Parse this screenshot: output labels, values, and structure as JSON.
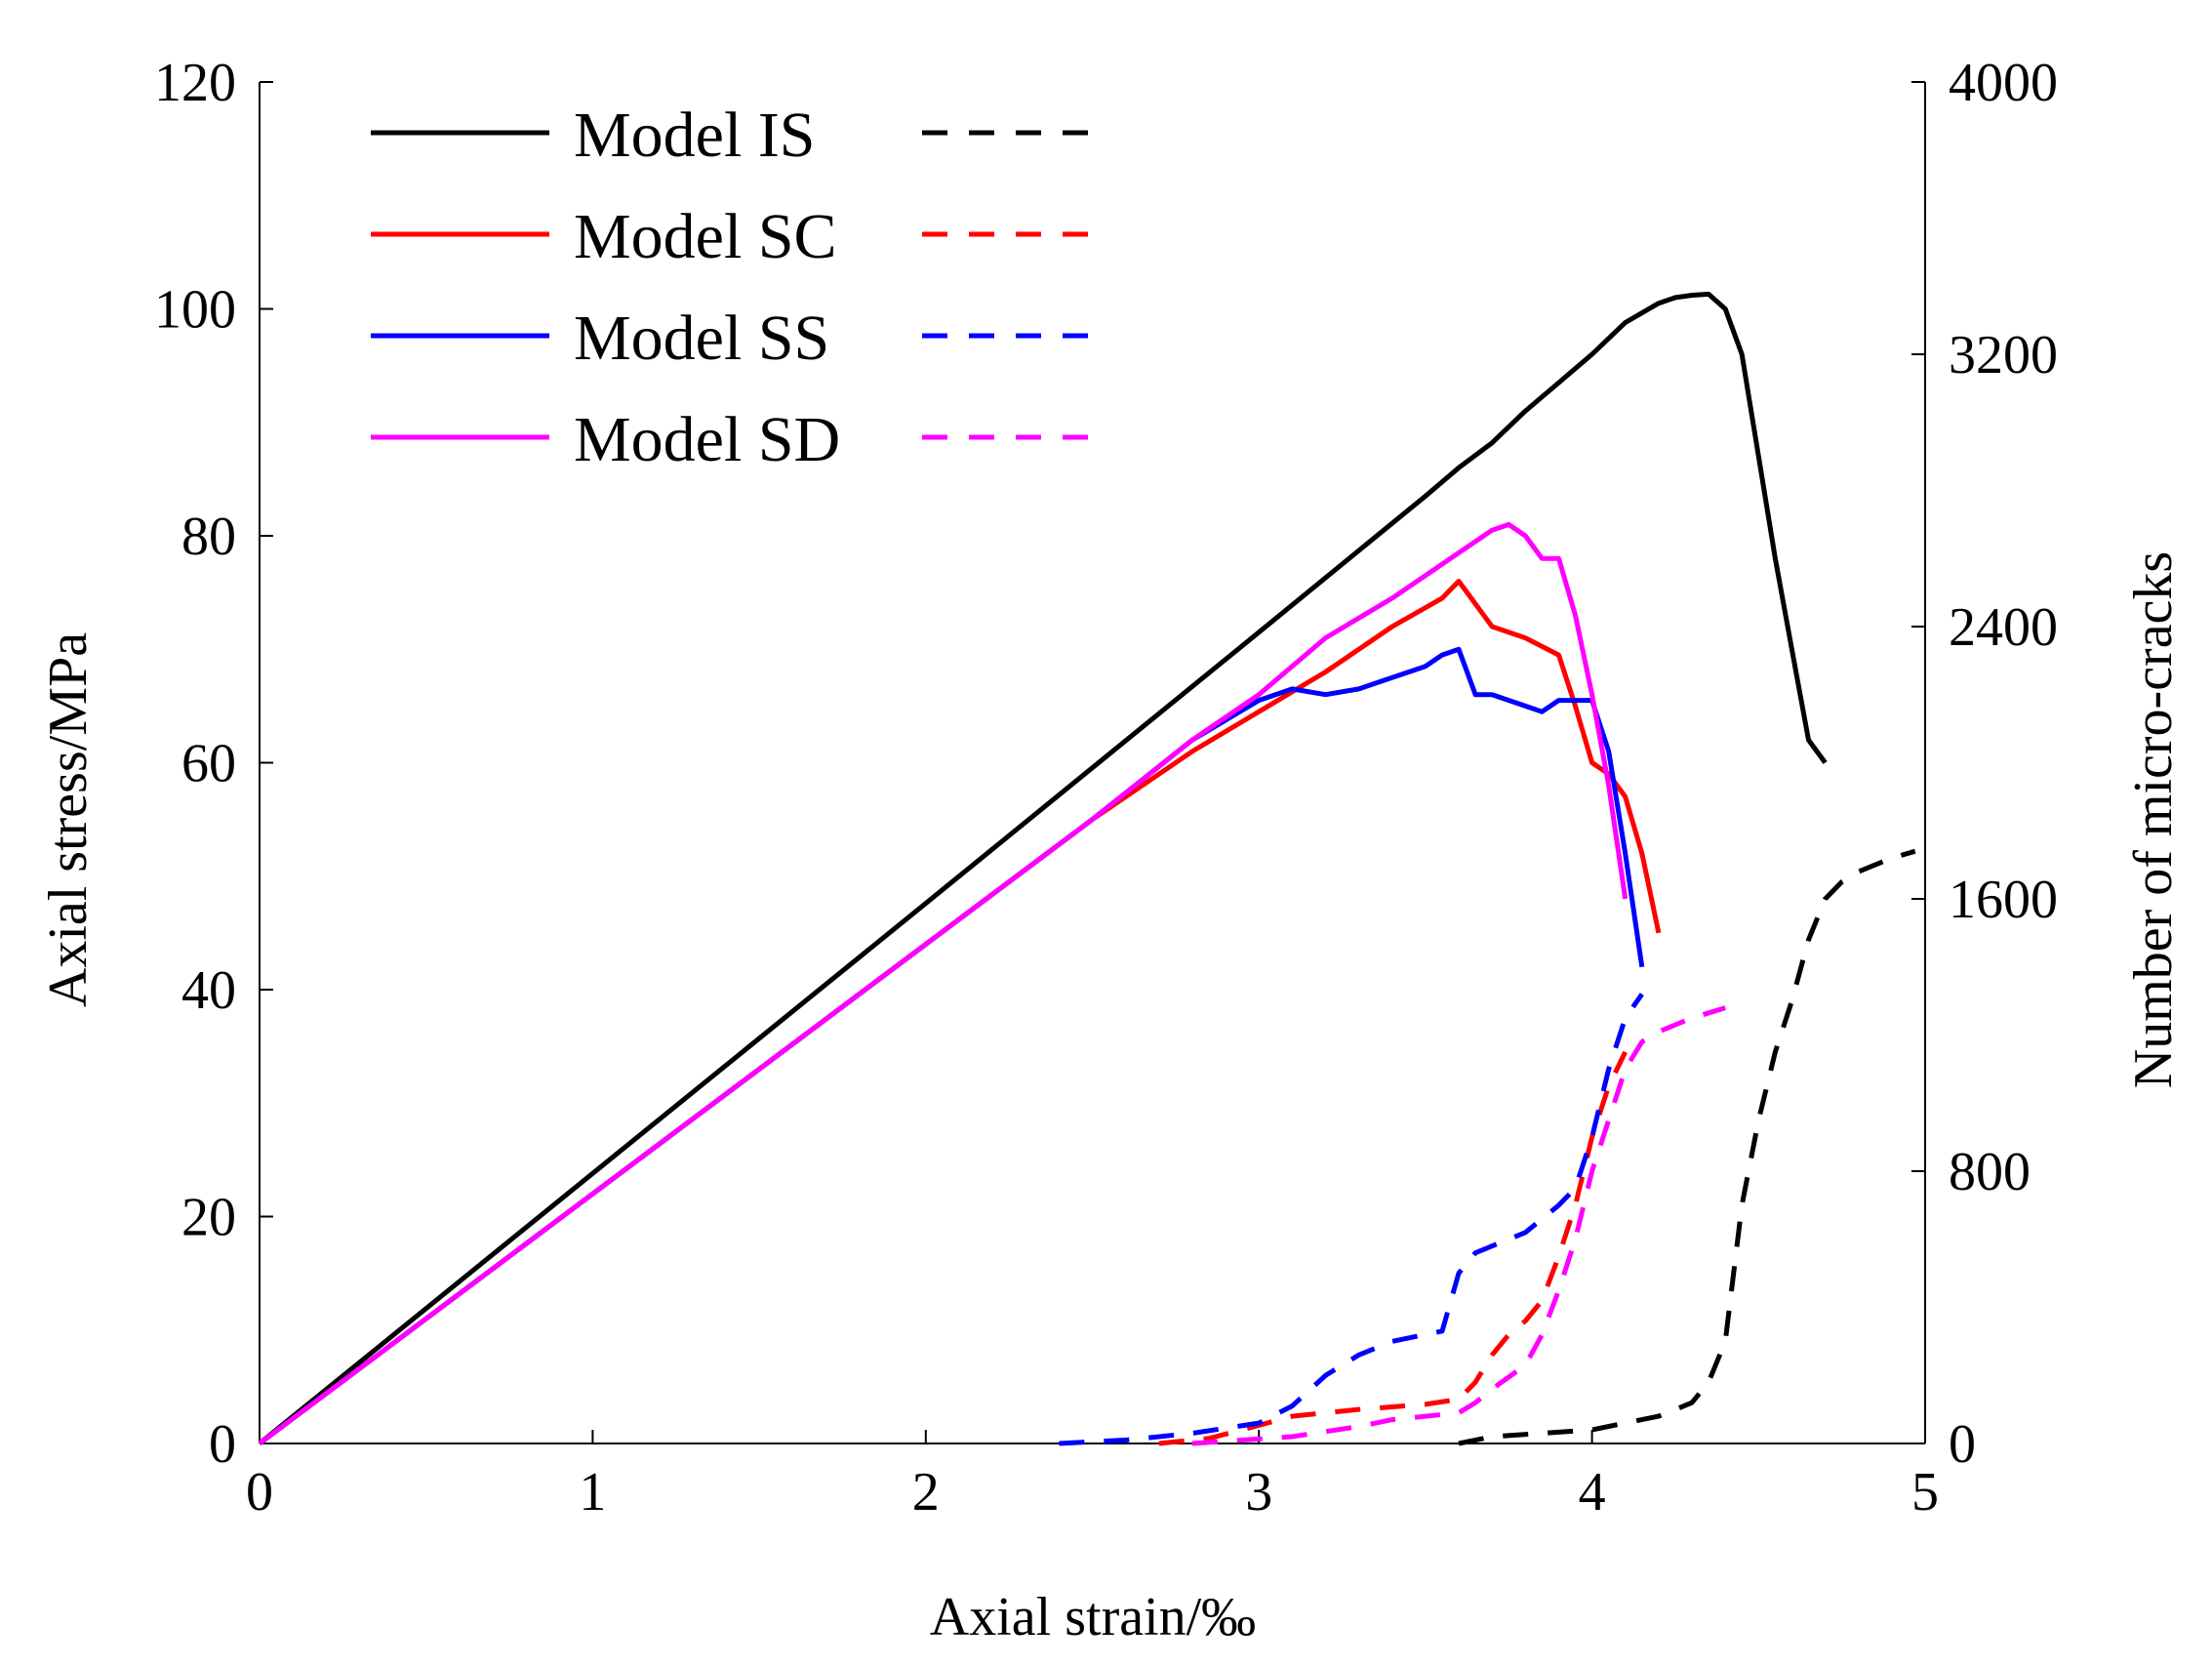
{
  "chart_data": {
    "type": "line",
    "xlabel": "Axial strain/‰",
    "ylabel": "Axial stress/MPa",
    "y2label": "Number of micro-cracks",
    "xlim": [
      0,
      5
    ],
    "ylim": [
      0,
      120
    ],
    "y2lim": [
      0,
      4000
    ],
    "xticks": [
      "0",
      "1",
      "2",
      "3",
      "4",
      "5"
    ],
    "yticks": [
      "0",
      "20",
      "40",
      "60",
      "80",
      "100",
      "120"
    ],
    "y2ticks": [
      "0",
      "800",
      "1600",
      "2400",
      "3200",
      "4000"
    ],
    "legend_position": "top-left",
    "series": [
      {
        "name": "Model IS",
        "color": "#000000",
        "stress": {
          "x": [
            0,
            0.5,
            1.0,
            2.0,
            3.0,
            3.5,
            3.6,
            3.7,
            3.8,
            3.9,
            4.0,
            4.1,
            4.2,
            4.25,
            4.3,
            4.35,
            4.4,
            4.45,
            4.5,
            4.55,
            4.6,
            4.65,
            4.7
          ],
          "y": [
            0,
            11.9,
            23.8,
            47.6,
            71.5,
            83.5,
            86,
            88.2,
            91,
            93.5,
            96,
            98.8,
            100.5,
            101,
            101.2,
            101.3,
            100,
            96,
            87,
            78,
            70,
            62,
            60
          ]
        },
        "cracks": {
          "x": [
            3.6,
            3.7,
            4.0,
            4.2,
            4.3,
            4.35,
            4.4,
            4.45,
            4.5,
            4.55,
            4.6,
            4.65,
            4.7,
            4.75,
            4.8,
            4.9,
            4.97
          ],
          "y": [
            0,
            20,
            40,
            80,
            120,
            180,
            300,
            700,
            950,
            1150,
            1300,
            1480,
            1600,
            1650,
            1680,
            1720,
            1740
          ]
        }
      },
      {
        "name": "Model SC",
        "color": "#ff0000",
        "stress": {
          "x": [
            0,
            0.5,
            1.0,
            2.0,
            2.5,
            2.8,
            3.0,
            3.2,
            3.4,
            3.55,
            3.6,
            3.7,
            3.8,
            3.9,
            3.95,
            4.0,
            4.05,
            4.1,
            4.15,
            4.2
          ],
          "y": [
            0,
            11,
            22,
            44,
            55,
            61,
            64.5,
            68,
            72,
            74.5,
            76,
            72,
            71,
            69.5,
            65,
            60,
            59,
            57,
            52,
            45
          ]
        },
        "cracks": {
          "x": [
            2.7,
            2.85,
            2.95,
            3.1,
            3.3,
            3.5,
            3.6,
            3.65,
            3.7,
            3.75,
            3.8,
            3.85,
            3.9,
            3.95,
            4.0,
            4.05,
            4.1
          ],
          "y": [
            0,
            15,
            40,
            80,
            100,
            115,
            130,
            180,
            260,
            320,
            360,
            420,
            550,
            700,
            900,
            1050,
            1150
          ]
        }
      },
      {
        "name": "Model SS",
        "color": "#0000ff",
        "stress": {
          "x": [
            0,
            0.5,
            1.0,
            2.0,
            2.5,
            2.8,
            3.0,
            3.1,
            3.2,
            3.3,
            3.4,
            3.5,
            3.55,
            3.6,
            3.65,
            3.7,
            3.8,
            3.85,
            3.9,
            3.95,
            4.0,
            4.05,
            4.1,
            4.15
          ],
          "y": [
            0,
            11,
            22,
            44,
            55,
            62,
            65.5,
            66.5,
            66,
            66.5,
            67.5,
            68.5,
            69.5,
            70,
            66,
            66,
            65,
            64.5,
            65.5,
            65.5,
            65.5,
            61,
            52,
            42
          ]
        },
        "cracks": {
          "x": [
            2.4,
            2.6,
            2.8,
            3.0,
            3.1,
            3.2,
            3.3,
            3.4,
            3.5,
            3.55,
            3.6,
            3.65,
            3.7,
            3.8,
            3.9,
            3.95,
            4.0,
            4.05,
            4.1,
            4.15
          ],
          "y": [
            0,
            10,
            30,
            60,
            110,
            200,
            260,
            300,
            320,
            330,
            500,
            560,
            580,
            620,
            700,
            750,
            900,
            1100,
            1250,
            1320
          ]
        }
      },
      {
        "name": "Model SD",
        "color": "#ff00ff",
        "stress": {
          "x": [
            0,
            0.5,
            1.0,
            2.0,
            2.5,
            2.8,
            3.0,
            3.2,
            3.4,
            3.6,
            3.7,
            3.75,
            3.8,
            3.85,
            3.9,
            3.95,
            4.0,
            4.05,
            4.1
          ],
          "y": [
            0,
            11,
            22,
            44,
            55,
            62,
            66,
            71,
            74.5,
            78.5,
            80.5,
            81,
            80,
            78,
            78,
            73,
            66,
            58,
            48
          ]
        },
        "cracks": {
          "x": [
            2.8,
            2.95,
            3.1,
            3.3,
            3.4,
            3.5,
            3.6,
            3.65,
            3.7,
            3.8,
            3.85,
            3.9,
            3.95,
            4.0,
            4.05,
            4.1,
            4.15,
            4.2,
            4.3,
            4.4
          ],
          "y": [
            0,
            10,
            20,
            50,
            70,
            80,
            90,
            120,
            160,
            230,
            320,
            450,
            600,
            800,
            950,
            1100,
            1180,
            1210,
            1250,
            1280
          ]
        }
      }
    ]
  }
}
